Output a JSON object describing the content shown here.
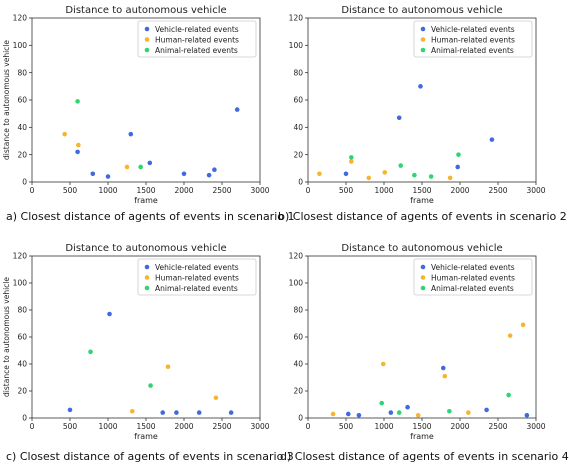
{
  "colors": {
    "vehicle": "#4169e1",
    "human": "#f5b52e",
    "animal": "#2ed573",
    "axis": "#333333",
    "legend_border": "#cccccc"
  },
  "captions": [
    "a) Closest distance of agents of events in scenario 1",
    "b) Closest distance of agents of events in scenario 2",
    "c) Closest distance of agents of events in scenario 3",
    "d) Closest distance of agents of events in scenario 4"
  ],
  "chart_data": [
    {
      "type": "scatter",
      "title": "Distance to autonomous vehicle",
      "xlabel": "frame",
      "ylabel": "distance to autonomous vehicle",
      "xlim": [
        0,
        3000
      ],
      "ylim": [
        0,
        120
      ],
      "xticks": [
        0,
        500,
        1000,
        1500,
        2000,
        2500,
        3000
      ],
      "yticks": [
        0,
        20,
        40,
        60,
        80,
        100,
        120
      ],
      "legend": "top-right",
      "grid": false,
      "series": [
        {
          "name": "Vehicle-related events",
          "color_key": "vehicle",
          "x": [
            600,
            800,
            1000,
            1300,
            1550,
            2000,
            2330,
            2400,
            2700
          ],
          "y": [
            22,
            6,
            4,
            35,
            14,
            6,
            5,
            9,
            53
          ]
        },
        {
          "name": "Human-related events",
          "color_key": "human",
          "x": [
            430,
            610,
            1250
          ],
          "y": [
            35,
            27,
            11
          ]
        },
        {
          "name": "Animal-related events",
          "color_key": "animal",
          "x": [
            600,
            1430
          ],
          "y": [
            59,
            11
          ]
        }
      ]
    },
    {
      "type": "scatter",
      "title": "Distance to autonomous vehicle",
      "xlabel": "frame",
      "ylabel": "",
      "xlim": [
        0,
        3000
      ],
      "ylim": [
        0,
        120
      ],
      "xticks": [
        0,
        500,
        1000,
        1500,
        2000,
        2500,
        3000
      ],
      "yticks": [
        0,
        20,
        40,
        60,
        80,
        100,
        120
      ],
      "legend": "top-right",
      "grid": false,
      "series": [
        {
          "name": "Vehicle-related events",
          "color_key": "vehicle",
          "x": [
            500,
            1200,
            1480,
            1970,
            2420
          ],
          "y": [
            6,
            47,
            70,
            11,
            31
          ]
        },
        {
          "name": "Human-related events",
          "color_key": "human",
          "x": [
            150,
            570,
            800,
            1010,
            1870
          ],
          "y": [
            6,
            15,
            3,
            7,
            3
          ]
        },
        {
          "name": "Animal-related events",
          "color_key": "animal",
          "x": [
            570,
            1220,
            1400,
            1620,
            1980
          ],
          "y": [
            18,
            12,
            5,
            4,
            20
          ]
        }
      ]
    },
    {
      "type": "scatter",
      "title": "Distance to autonomous vehicle",
      "xlabel": "frame",
      "ylabel": "distance to autonomous vehicle",
      "xlim": [
        0,
        3000
      ],
      "ylim": [
        0,
        120
      ],
      "xticks": [
        0,
        500,
        1000,
        1500,
        2000,
        2500,
        3000
      ],
      "yticks": [
        0,
        20,
        40,
        60,
        80,
        100,
        120
      ],
      "legend": "top-right",
      "grid": false,
      "series": [
        {
          "name": "Vehicle-related events",
          "color_key": "vehicle",
          "x": [
            500,
            1020,
            1720,
            1900,
            2200,
            2620
          ],
          "y": [
            6,
            77,
            4,
            4,
            4,
            4
          ]
        },
        {
          "name": "Human-related events",
          "color_key": "human",
          "x": [
            1320,
            1790,
            2420
          ],
          "y": [
            5,
            38,
            15
          ]
        },
        {
          "name": "Animal-related events",
          "color_key": "animal",
          "x": [
            770,
            1560
          ],
          "y": [
            49,
            24
          ]
        }
      ]
    },
    {
      "type": "scatter",
      "title": "Distance to autonomous vehicle",
      "xlabel": "frame",
      "ylabel": "",
      "xlim": [
        0,
        3000
      ],
      "ylim": [
        0,
        120
      ],
      "xticks": [
        0,
        500,
        1000,
        1500,
        2000,
        2500,
        3000
      ],
      "yticks": [
        0,
        20,
        40,
        60,
        80,
        100,
        120
      ],
      "legend": "top-right",
      "grid": false,
      "series": [
        {
          "name": "Vehicle-related events",
          "color_key": "vehicle",
          "x": [
            530,
            670,
            1090,
            1310,
            1780,
            2350,
            2880
          ],
          "y": [
            3,
            2,
            4,
            8,
            37,
            6,
            2
          ]
        },
        {
          "name": "Human-related events",
          "color_key": "human",
          "x": [
            330,
            990,
            1450,
            1800,
            2110,
            2660,
            2830
          ],
          "y": [
            3,
            40,
            2,
            31,
            4,
            61,
            69
          ]
        },
        {
          "name": "Animal-related events",
          "color_key": "animal",
          "x": [
            970,
            1200,
            1860,
            2640
          ],
          "y": [
            11,
            4,
            5,
            17
          ]
        }
      ]
    }
  ]
}
